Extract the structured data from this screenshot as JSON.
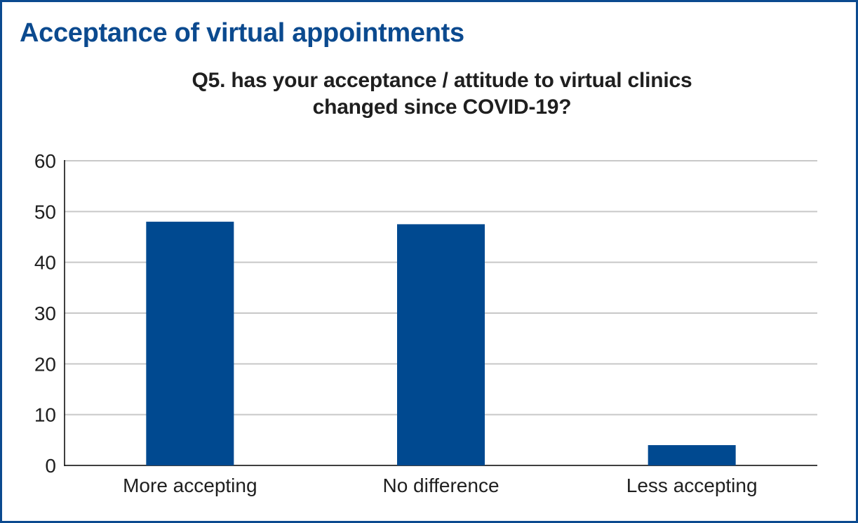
{
  "header": {
    "title": "Acceptance of virtual appointments"
  },
  "colors": {
    "frame": "#0b4a8f",
    "title": "#0b4a8f",
    "bar": "#004990",
    "grid": "#c8c8c8",
    "text": "#1f1f1f"
  },
  "chart_data": {
    "type": "bar",
    "title": "Q5. has your acceptance / attitude to virtual clinics changed since COVID-19?",
    "title_lines": [
      "Q5. has your acceptance / attitude to virtual clinics",
      "changed since COVID-19?"
    ],
    "categories": [
      "More accepting",
      "No difference",
      "Less accepting"
    ],
    "values": [
      48,
      47.5,
      4
    ],
    "xlabel": "",
    "ylabel": "",
    "ylim": [
      0,
      60
    ],
    "yticks": [
      0,
      10,
      20,
      30,
      40,
      50,
      60
    ],
    "grid": true,
    "legend": false
  }
}
